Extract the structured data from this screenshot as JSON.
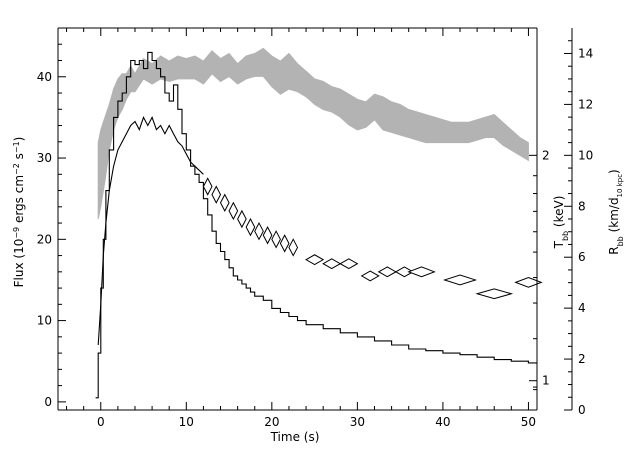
{
  "chart_data": {
    "type": "line",
    "title": "",
    "xlabel": "Time (s)",
    "ylabel_left": {
      "main": "Flux (10",
      "sup1": "−9",
      "mid": " ergs cm",
      "sup2": "−2",
      "mid2": " s",
      "sup3": "−1",
      "end": ")"
    },
    "ylabel_mid": {
      "main": "T",
      "sub": "bb",
      "end": " (keV)"
    },
    "ylabel_right": {
      "main": "R",
      "sub": "bb",
      "mid": " (km/d",
      "sub2": "10 kpc",
      "end": ")"
    },
    "xlim": [
      -5,
      51
    ],
    "ylim_left": [
      -1,
      46
    ],
    "ylim_right": [
      0,
      15
    ],
    "x_ticks": [
      0,
      10,
      20,
      30,
      40,
      50
    ],
    "y_left_ticks": [
      0,
      10,
      20,
      30,
      40
    ],
    "y_right_ticks": [
      0,
      2,
      4,
      6,
      8,
      10,
      12,
      14
    ],
    "temp_ticks": [
      {
        "label": "1",
        "value": 1.15
      },
      {
        "label": "2",
        "value": 10.0
      }
    ],
    "colors": {
      "radius_band": "#b3b3b3",
      "flux": "#000000",
      "temperature": "#000000"
    },
    "series": [
      {
        "axis": "left",
        "style": "step-line",
        "x": [
          -0.6,
          -0.3,
          0,
          0.3,
          0.6,
          1,
          1.5,
          2,
          2.5,
          3,
          3.5,
          4,
          4.5,
          5,
          5.5,
          6,
          6.5,
          7,
          7.5,
          8,
          8.5,
          9,
          9.5,
          10,
          10.5,
          11,
          11.5,
          12,
          12.5,
          13,
          13.5,
          14,
          14.5,
          15,
          15.5,
          16,
          16.5,
          17,
          17.5,
          18,
          19,
          20,
          21,
          22,
          23,
          24,
          26,
          28,
          30,
          32,
          34,
          36,
          38,
          40,
          42,
          44,
          46,
          48,
          50,
          51
        ],
        "y": [
          0.5,
          6,
          14,
          20,
          26,
          31,
          35,
          37,
          38,
          40,
          42,
          41.5,
          42,
          41,
          43,
          42,
          41,
          40,
          38,
          37,
          39,
          36,
          33,
          31,
          29,
          28,
          27,
          25,
          23,
          21,
          19.5,
          18.5,
          17.5,
          16.5,
          15.5,
          15,
          14.5,
          14,
          13.5,
          13,
          12.5,
          11.5,
          11,
          10.5,
          10,
          9.5,
          9,
          8.5,
          8,
          7.5,
          7,
          6.5,
          6.3,
          6,
          5.8,
          5.5,
          5.2,
          5,
          4.8,
          4.8
        ]
      },
      {
        "axis": "left",
        "style": "line",
        "x": [
          -0.3,
          0,
          0.3,
          0.6,
          1,
          1.5,
          2,
          2.5,
          3,
          3.5,
          4,
          4.5,
          5,
          5.5,
          6,
          6.5,
          7,
          7.5,
          8,
          8.5,
          9,
          9.5,
          10,
          10.5,
          11,
          11.5,
          12
        ],
        "y": [
          7,
          12,
          18,
          22,
          26,
          29,
          31,
          32,
          33,
          34,
          34.5,
          33.5,
          35,
          34,
          35,
          33.5,
          34,
          33,
          34,
          33,
          32,
          31.5,
          30.5,
          29.5,
          29,
          28.5,
          28
        ]
      },
      {
        "axis": "left",
        "style": "diamonds",
        "x": [
          12.5,
          13.5,
          14.5,
          15.5,
          16.5,
          17.5,
          18.5,
          19.5,
          20.5,
          21.5,
          22.5,
          25,
          27,
          29,
          31.5,
          33.5,
          35.5,
          37.5,
          42,
          46,
          50
        ],
        "y": [
          26.5,
          25.5,
          24.5,
          23.5,
          22.5,
          21.5,
          21,
          20.5,
          20,
          19.5,
          19,
          17.5,
          17,
          17,
          15.5,
          16,
          16,
          16,
          15,
          13.3,
          14.7
        ],
        "half_width": [
          0.5,
          0.5,
          0.5,
          0.5,
          0.5,
          0.5,
          0.5,
          0.5,
          0.5,
          0.5,
          0.5,
          1,
          1,
          1,
          1,
          1,
          1,
          1.5,
          1.8,
          2,
          1.5
        ],
        "half_height": [
          1,
          1,
          1,
          1,
          1,
          1,
          1,
          1,
          1,
          1,
          1,
          0.6,
          0.6,
          0.6,
          0.6,
          0.6,
          0.6,
          0.6,
          0.6,
          0.6,
          0.6
        ]
      },
      {
        "axis": "right",
        "style": "band",
        "x": [
          -0.3,
          0,
          0.5,
          1,
          1.5,
          2,
          2.5,
          3,
          3.5,
          4,
          5,
          6,
          7,
          8,
          9,
          10,
          11,
          12,
          13,
          14,
          15,
          16,
          17,
          18,
          19,
          20,
          21,
          22,
          23,
          24,
          25,
          26,
          27,
          28,
          29,
          30,
          31,
          32,
          33,
          34,
          35,
          36,
          37,
          38,
          39,
          40,
          41,
          42,
          43,
          44,
          45,
          46,
          47,
          48,
          49,
          50
        ],
        "upper": [
          10.5,
          11,
          11.5,
          12,
          12.6,
          13,
          13.2,
          13.2,
          13.5,
          13.2,
          13.8,
          13.6,
          13.9,
          13.7,
          13.9,
          13.8,
          13.9,
          13.7,
          14.1,
          13.8,
          14.0,
          13.6,
          13.9,
          14.0,
          14.2,
          13.9,
          13.7,
          14.0,
          13.6,
          13.3,
          13.0,
          12.9,
          12.7,
          12.6,
          12.4,
          12.2,
          12.1,
          12.4,
          12.3,
          12.1,
          12.0,
          11.8,
          11.7,
          11.6,
          11.5,
          11.4,
          11.3,
          11.3,
          11.3,
          11.4,
          11.5,
          11.6,
          11.3,
          11.0,
          10.7,
          10.5
        ],
        "lower": [
          7.5,
          8,
          9,
          10.2,
          11,
          11.5,
          11.8,
          12.2,
          12.5,
          12.5,
          13.0,
          12.8,
          13.0,
          12.9,
          13.0,
          13.0,
          13.0,
          12.8,
          13.2,
          12.9,
          13.1,
          12.8,
          13.0,
          13.1,
          13.1,
          12.7,
          12.4,
          12.6,
          12.5,
          12.3,
          12.0,
          11.8,
          11.7,
          11.5,
          11.2,
          11.0,
          11.1,
          11.4,
          11.0,
          10.9,
          10.8,
          10.7,
          10.6,
          10.5,
          10.5,
          10.5,
          10.5,
          10.5,
          10.5,
          10.6,
          10.7,
          10.7,
          10.4,
          10.2,
          10.0,
          9.8
        ]
      }
    ]
  }
}
